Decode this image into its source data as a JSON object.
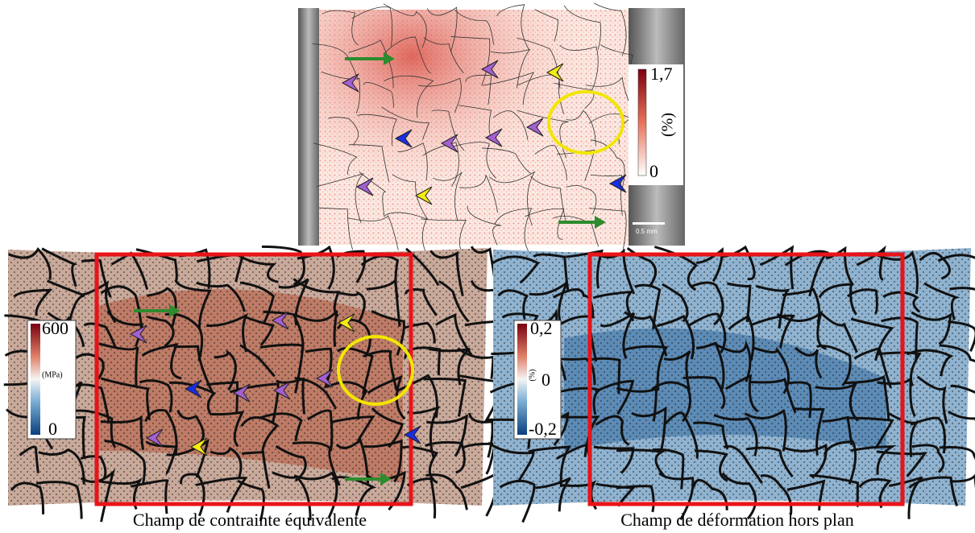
{
  "top_panel": {
    "colorbar": {
      "max_label": "1,7",
      "unit": "(%)",
      "min_label": "0"
    },
    "scale_bar": "0.5 mm"
  },
  "left_panel": {
    "colorbar": {
      "max_label": "600",
      "unit": "(MPa)",
      "min_label": "0"
    },
    "caption": "Champ de contrainte équivalente"
  },
  "right_panel": {
    "colorbar": {
      "max_label": "0,2",
      "unit": "(%)",
      "mid_label": "0",
      "min_label": "-0,2"
    },
    "caption": "Champ de déformation hors plan"
  }
}
